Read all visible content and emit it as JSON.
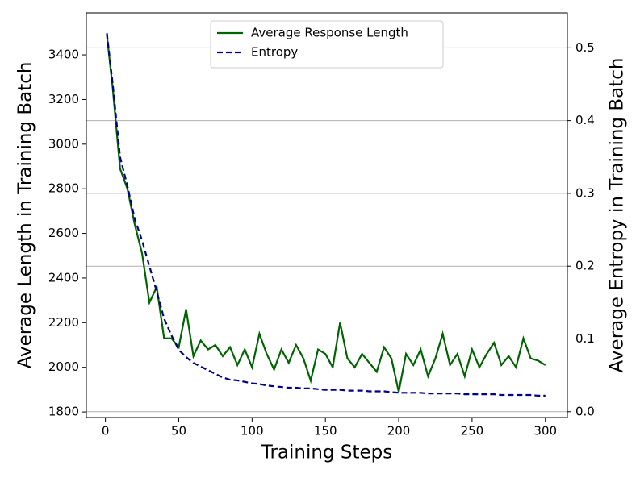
{
  "chart_data": {
    "type": "line",
    "xlabel": "Training Steps",
    "ylabel": "Average Length in Training Batch",
    "y2label": "Average Entropy in Training Batch",
    "x": [
      1,
      5,
      10,
      15,
      20,
      25,
      30,
      35,
      40,
      45,
      50,
      55,
      60,
      65,
      70,
      75,
      80,
      85,
      90,
      95,
      100,
      105,
      110,
      115,
      120,
      125,
      130,
      135,
      140,
      145,
      150,
      155,
      160,
      165,
      170,
      175,
      180,
      185,
      190,
      195,
      200,
      205,
      210,
      215,
      220,
      225,
      230,
      235,
      240,
      245,
      250,
      255,
      260,
      265,
      270,
      275,
      280,
      285,
      290,
      295,
      300
    ],
    "series": [
      {
        "name": "Average Response Length",
        "color": "#006400",
        "style": "solid",
        "values": [
          3490,
          3250,
          2890,
          2800,
          2640,
          2510,
          2290,
          2360,
          2130,
          2130,
          2090,
          2260,
          2050,
          2120,
          2080,
          2100,
          2050,
          2090,
          2010,
          2080,
          2000,
          2150,
          2060,
          1990,
          2080,
          2020,
          2100,
          2040,
          1940,
          2080,
          2060,
          2000,
          2200,
          2040,
          2000,
          2060,
          2020,
          1980,
          2090,
          2040,
          1890,
          2060,
          2010,
          2080,
          1960,
          2040,
          2150,
          2010,
          2060,
          1960,
          2080,
          2000,
          2060,
          2110,
          2010,
          2050,
          2000,
          2130,
          2040,
          2030,
          2010
        ]
      },
      {
        "name": "Entropy",
        "color": "#00008b",
        "style": "dashed",
        "axis": "y2",
        "values": [
          0.52,
          0.45,
          0.35,
          0.31,
          0.265,
          0.235,
          0.2,
          0.165,
          0.128,
          0.105,
          0.085,
          0.075,
          0.067,
          0.062,
          0.057,
          0.052,
          0.047,
          0.044,
          0.043,
          0.041,
          0.039,
          0.038,
          0.036,
          0.035,
          0.034,
          0.033,
          0.033,
          0.032,
          0.032,
          0.031,
          0.03,
          0.03,
          0.03,
          0.029,
          0.029,
          0.029,
          0.028,
          0.028,
          0.028,
          0.027,
          0.026,
          0.026,
          0.026,
          0.026,
          0.025,
          0.025,
          0.025,
          0.025,
          0.025,
          0.024,
          0.024,
          0.024,
          0.024,
          0.024,
          0.023,
          0.023,
          0.023,
          0.023,
          0.023,
          0.022,
          0.022
        ]
      }
    ],
    "xlim": [
      -13,
      315
    ],
    "xticks": [
      0,
      50,
      100,
      150,
      200,
      250,
      300
    ],
    "ylim": [
      1775,
      3588
    ],
    "yticks": [
      1800,
      2000,
      2200,
      2400,
      2600,
      2800,
      3000,
      3200,
      3400
    ],
    "y2lim": [
      -0.008,
      0.548
    ],
    "y2ticks": [
      {
        "value": 0,
        "label": "0.0"
      },
      0.1,
      0.2,
      0.3,
      0.4,
      0.5
    ],
    "grid": "y2",
    "legend": "upper center"
  }
}
